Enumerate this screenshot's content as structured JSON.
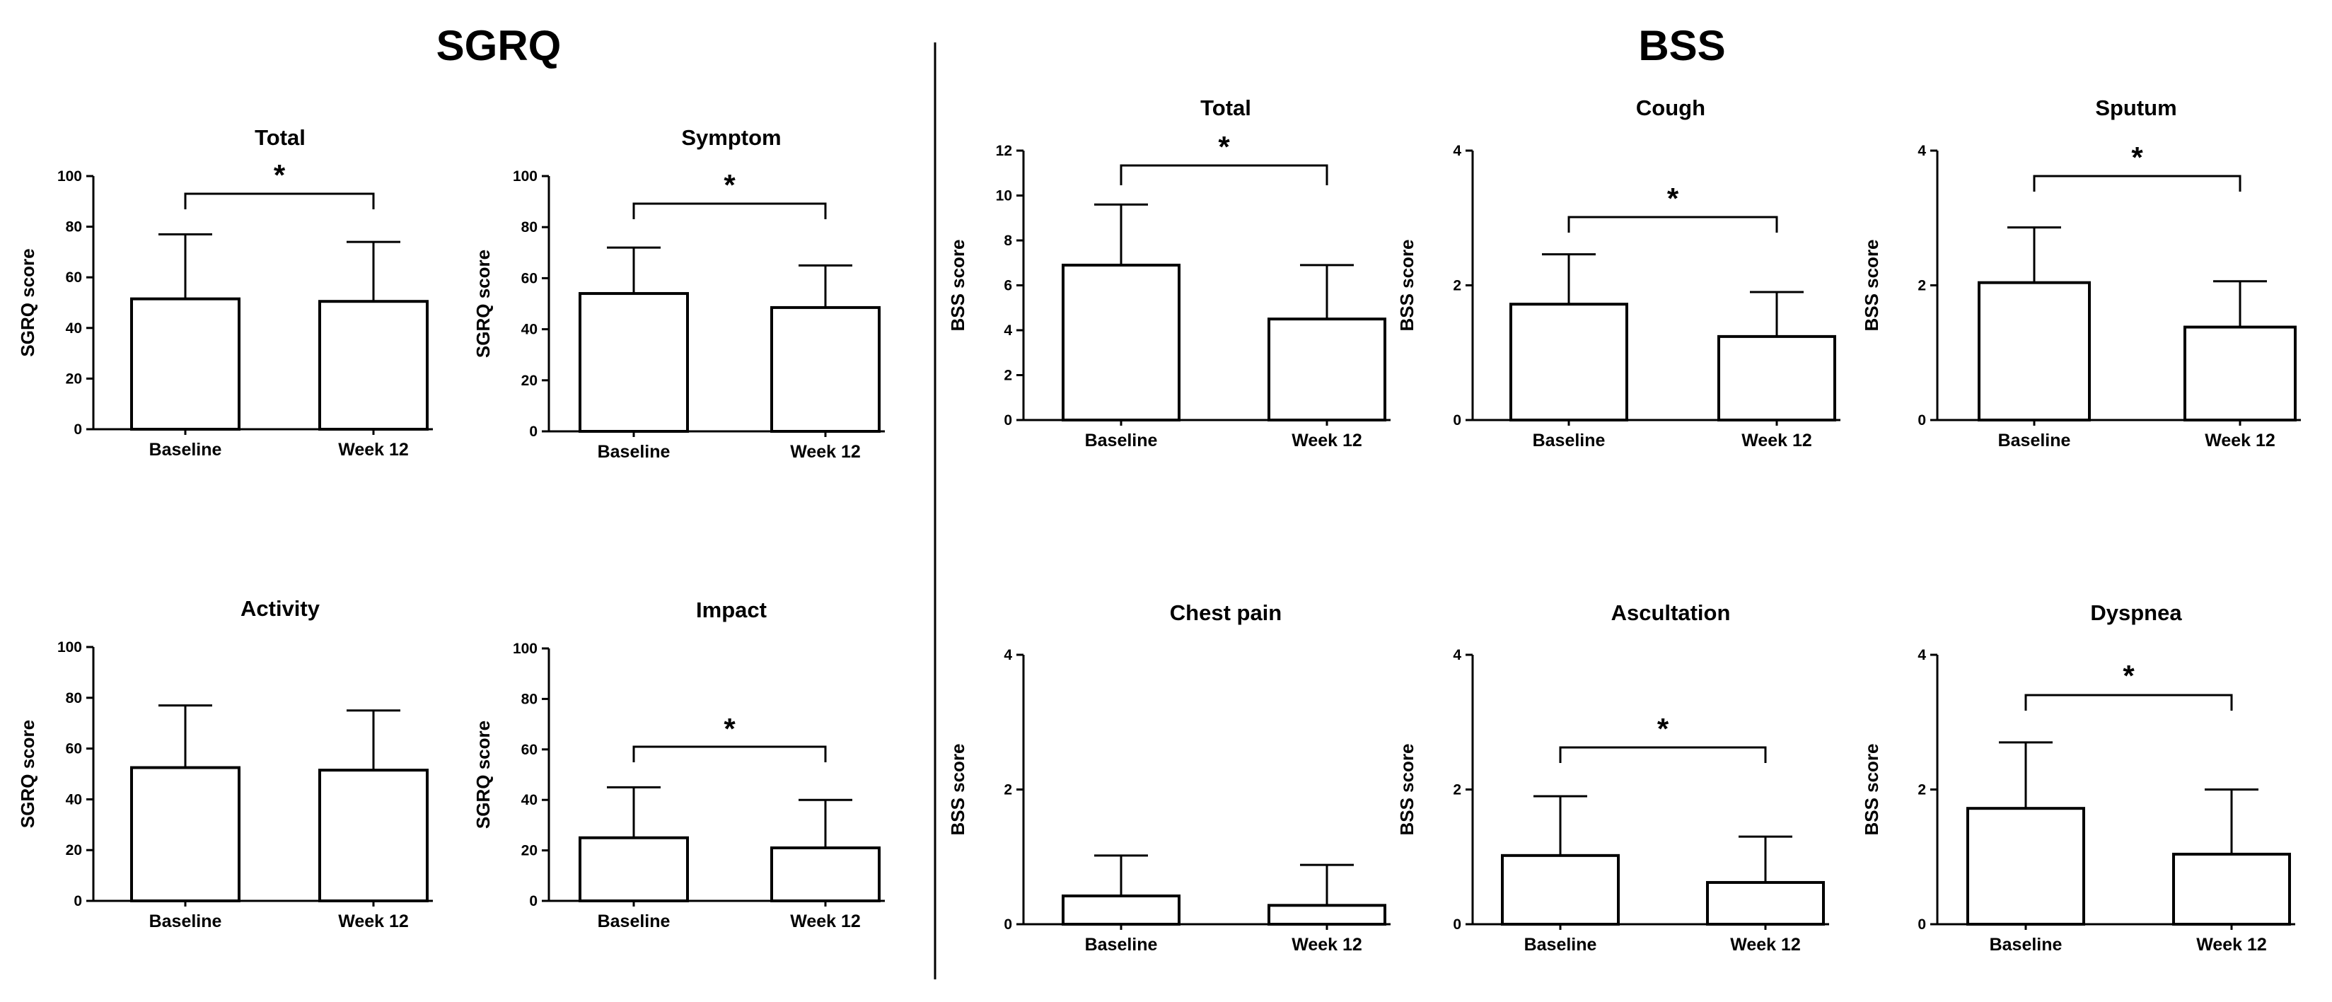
{
  "sections": {
    "sgrq_title": "SGRQ",
    "bss_title": "BSS"
  },
  "colors": {
    "bar_fill": "#ffffff",
    "stroke": "#000000"
  },
  "chart_data": [
    {
      "type": "bar",
      "title": "Total",
      "ylabel": "SGRQ score",
      "ylim": [
        0,
        100
      ],
      "yticks": [
        0,
        20,
        40,
        60,
        80,
        100
      ],
      "categories": [
        "Baseline",
        "Week 12"
      ],
      "values": [
        51.5,
        50.5
      ],
      "errors": [
        25.5,
        23.5
      ],
      "significance": "*"
    },
    {
      "type": "bar",
      "title": "Symptom",
      "ylabel": "SGRQ score",
      "ylim": [
        0,
        100
      ],
      "yticks": [
        0,
        20,
        40,
        60,
        80,
        100
      ],
      "categories": [
        "Baseline",
        "Week 12"
      ],
      "values": [
        54,
        48.5
      ],
      "errors": [
        18,
        16.5
      ],
      "significance": "*"
    },
    {
      "type": "bar",
      "title": "Activity",
      "ylabel": "SGRQ score",
      "ylim": [
        0,
        100
      ],
      "yticks": [
        0,
        20,
        40,
        60,
        80,
        100
      ],
      "categories": [
        "Baseline",
        "Week 12"
      ],
      "values": [
        52.5,
        51.5
      ],
      "errors": [
        24.5,
        23.5
      ],
      "significance": ""
    },
    {
      "type": "bar",
      "title": "Impact",
      "ylabel": "SGRQ score",
      "ylim": [
        0,
        100
      ],
      "yticks": [
        0,
        20,
        40,
        60,
        80,
        100
      ],
      "categories": [
        "Baseline",
        "Week 12"
      ],
      "values": [
        25,
        21
      ],
      "errors": [
        20,
        19
      ],
      "significance": "*"
    },
    {
      "type": "bar",
      "title": "Total",
      "ylabel": "BSS score",
      "ylim": [
        0,
        12
      ],
      "yticks": [
        0,
        2,
        4,
        6,
        8,
        10,
        12
      ],
      "categories": [
        "Baseline",
        "Week 12"
      ],
      "values": [
        6.9,
        4.5
      ],
      "errors": [
        2.7,
        2.4
      ],
      "significance": "*"
    },
    {
      "type": "bar",
      "title": "Cough",
      "ylabel": "BSS score",
      "ylim": [
        0,
        4
      ],
      "yticks": [
        0,
        2,
        4
      ],
      "categories": [
        "Baseline",
        "Week 12"
      ],
      "values": [
        1.72,
        1.24
      ],
      "errors": [
        0.74,
        0.66
      ],
      "significance": "*"
    },
    {
      "type": "bar",
      "title": "Sputum",
      "ylabel": "BSS score",
      "ylim": [
        0,
        4
      ],
      "yticks": [
        0,
        2,
        4
      ],
      "categories": [
        "Baseline",
        "Week 12"
      ],
      "values": [
        2.04,
        1.38
      ],
      "errors": [
        0.82,
        0.68
      ],
      "significance": "*"
    },
    {
      "type": "bar",
      "title": "Chest pain",
      "ylabel": "BSS score",
      "ylim": [
        0,
        4
      ],
      "yticks": [
        0,
        2,
        4
      ],
      "categories": [
        "Baseline",
        "Week 12"
      ],
      "values": [
        0.42,
        0.28
      ],
      "errors": [
        0.6,
        0.6
      ],
      "significance": ""
    },
    {
      "type": "bar",
      "title": "Ascultation",
      "ylabel": "BSS score",
      "ylim": [
        0,
        4
      ],
      "yticks": [
        0,
        2,
        4
      ],
      "categories": [
        "Baseline",
        "Week 12"
      ],
      "values": [
        1.02,
        0.62
      ],
      "errors": [
        0.88,
        0.68
      ],
      "significance": "*"
    },
    {
      "type": "bar",
      "title": "Dyspnea",
      "ylabel": "BSS score",
      "ylim": [
        0,
        4
      ],
      "yticks": [
        0,
        2,
        4
      ],
      "categories": [
        "Baseline",
        "Week 12"
      ],
      "values": [
        1.72,
        1.04
      ],
      "errors": [
        0.98,
        0.96
      ],
      "significance": "*"
    }
  ]
}
